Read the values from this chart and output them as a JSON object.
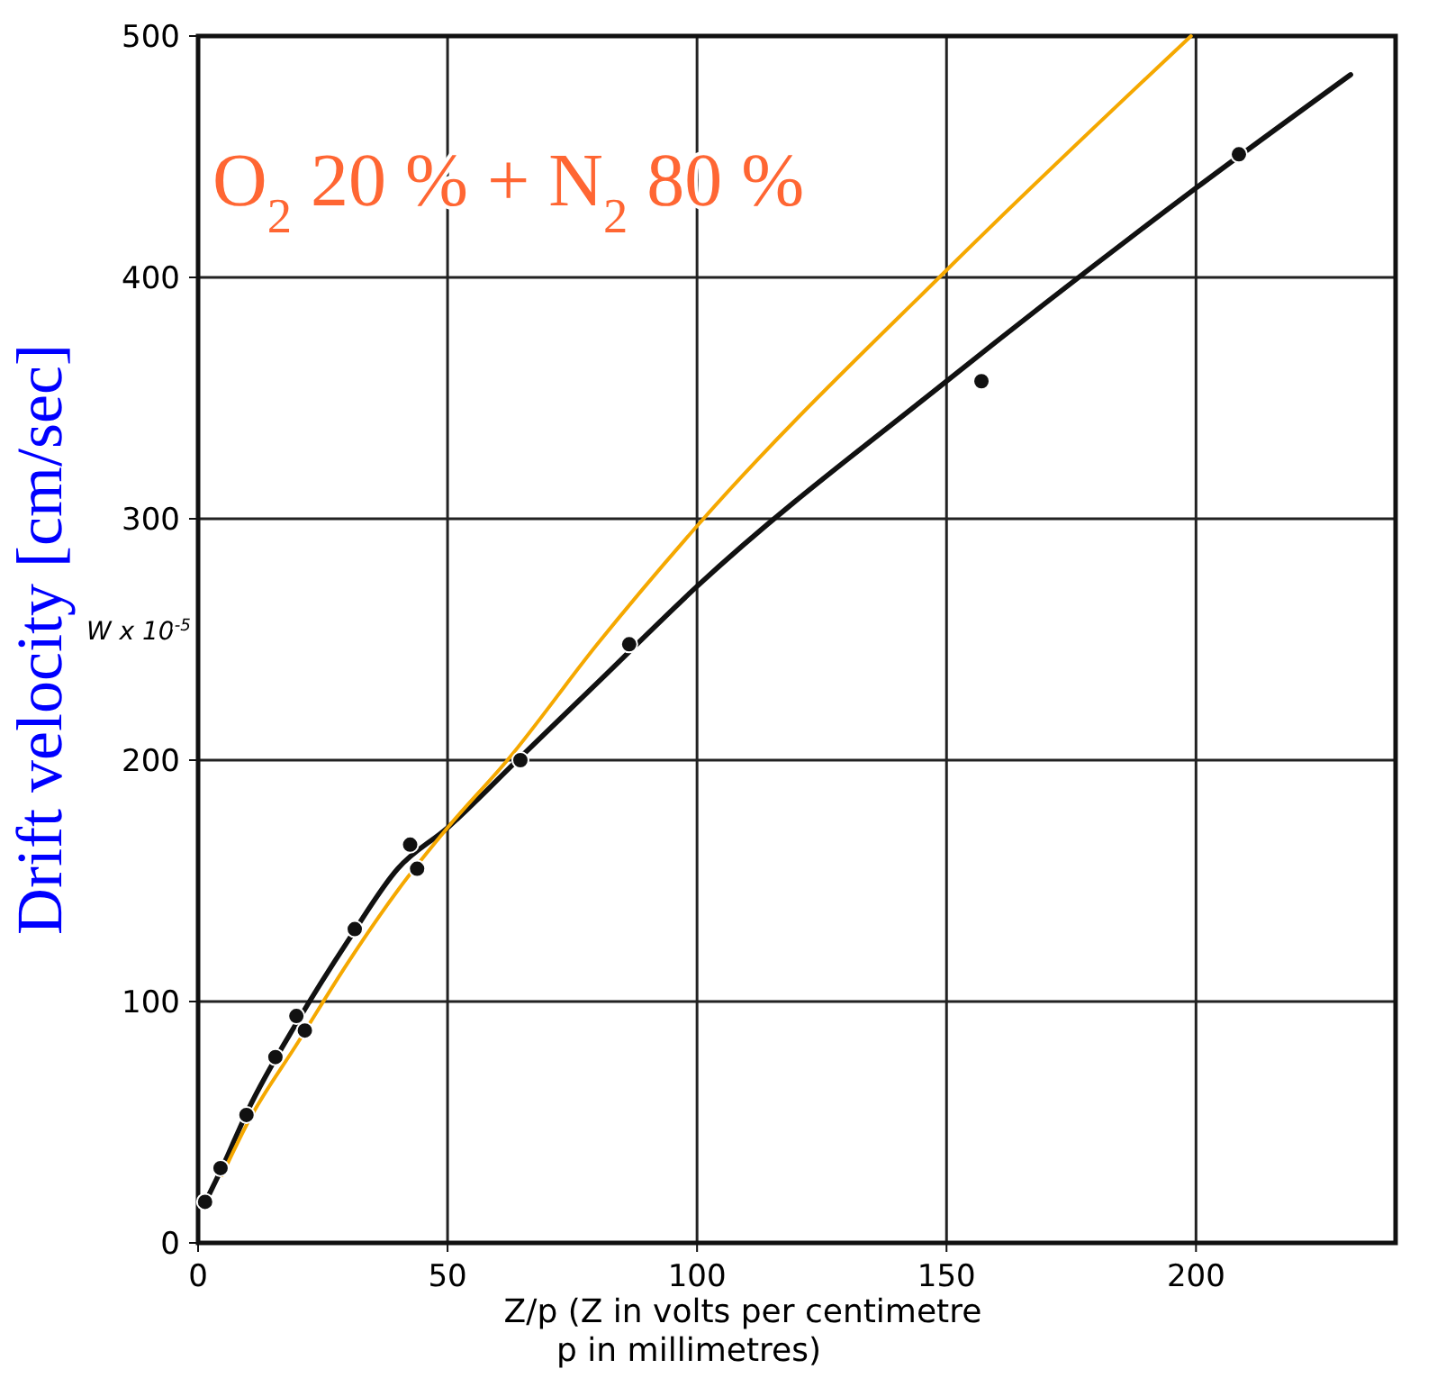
{
  "chart_data": {
    "type": "scatter",
    "ylabel": "Drift velocity [cm/sec]",
    "xlabel": "Z/p (Z in volts per centimetre p in millimetres)",
    "annotations": [
      "W x 10$^{-5}$",
      "O$_{2}$ 20 % + N$_{2}$ 80 %"
    ],
    "xlim": [
      0,
      240
    ],
    "ylim": [
      0,
      500
    ],
    "xticks": [
      0,
      50,
      100,
      150,
      200
    ],
    "yticks": [
      0,
      100,
      200,
      300,
      400,
      500
    ],
    "grid": true,
    "series": [
      {
        "color": "#111111",
        "marker": "circle",
        "x": [
          1.4,
          4.5,
          9.7,
          15.5,
          19.7,
          21.4,
          31.4,
          42.5,
          43.9,
          64.6,
          86.4,
          157,
          208.6
        ],
        "values": [
          17,
          31,
          53,
          77,
          94,
          88,
          130,
          165,
          155,
          200,
          248,
          357,
          451
        ]
      },
      {
        "type": "line",
        "color": "#111111",
        "line_style": "solid",
        "x": [
          1,
          5,
          10,
          20,
          30,
          40,
          50,
          64,
          80,
          100,
          150,
          200,
          231
        ],
        "values": [
          15,
          32,
          55,
          92,
          125,
          155,
          172,
          200,
          232,
          272,
          357,
          437,
          484
        ]
      },
      {
        "type": "line",
        "color": "#f5a800",
        "line_style": "solid",
        "x": [
          4.8,
          10,
          20,
          30,
          40,
          50,
          62,
          80,
          100,
          150,
          199
        ],
        "values": [
          28,
          50,
          83,
          116,
          146,
          172,
          200,
          248,
          297,
          403,
          500
        ]
      }
    ]
  }
}
